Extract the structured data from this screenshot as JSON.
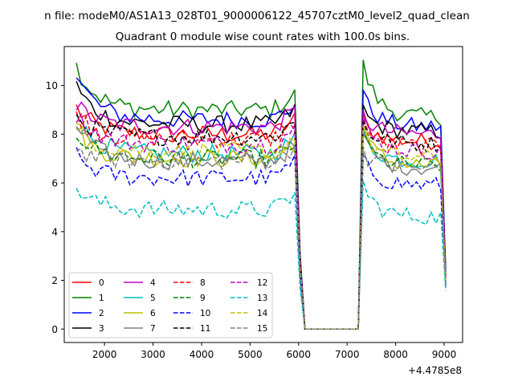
{
  "chart_data": {
    "type": "line",
    "suptitle": "n file: modeM0/AS1A13_028T01_9000006122_45707cztM0_level2_quad_clean",
    "title": "Quadrant 0 module wise count rates with 100.0s bins.",
    "xlabel": "",
    "ylabel": "",
    "x_offset_label": "+4.4785e8",
    "xlim": [
      1170,
      9380
    ],
    "ylim": [
      -0.55,
      11.6
    ],
    "x_ticks": [
      2000,
      3000,
      4000,
      5000,
      6000,
      7000,
      8000,
      9000
    ],
    "y_ticks": [
      0,
      2,
      4,
      6,
      8,
      10
    ],
    "x_tick_labels": [
      "2000",
      "3000",
      "4000",
      "5000",
      "6000",
      "7000",
      "8000",
      "9000"
    ],
    "y_tick_labels": [
      "0",
      "2",
      "4",
      "6",
      "8",
      "10"
    ],
    "grid": false,
    "legend_position": "lower-left",
    "legend_columns": 4,
    "bin_seconds": 100,
    "gap": {
      "start": 6130,
      "end": 7230,
      "value": 0
    },
    "segment1": {
      "x_start": 1420,
      "x_end": 5920
    },
    "segment2": {
      "x_start": 7330,
      "x_end": 8930,
      "x_final": 9030
    },
    "series": [
      {
        "name": "0",
        "color": "#ff0000",
        "dash": "solid",
        "level": 8.0,
        "start": 9.1,
        "seg2_start": 8.8,
        "final": 2.0
      },
      {
        "name": "1",
        "color": "#008000",
        "dash": "solid",
        "level": 9.0,
        "start": 10.8,
        "seg2_start": 11.05,
        "final": 2.2
      },
      {
        "name": "2",
        "color": "#0000ff",
        "dash": "solid",
        "level": 8.6,
        "start": 10.5,
        "seg2_start": 9.8,
        "final": 2.5
      },
      {
        "name": "3",
        "color": "#000000",
        "dash": "solid",
        "level": 8.4,
        "start": 10.0,
        "seg2_start": 9.2,
        "final": 2.3
      },
      {
        "name": "4",
        "color": "#bf00bf",
        "dash": "solid",
        "level": 8.3,
        "start": 9.2,
        "seg2_start": 9.0,
        "final": 2.1
      },
      {
        "name": "5",
        "color": "#00bfbf",
        "dash": "solid",
        "level": 7.2,
        "start": 8.6,
        "seg2_start": 8.2,
        "final": 1.9
      },
      {
        "name": "6",
        "color": "#bfbf00",
        "dash": "solid",
        "level": 7.0,
        "start": 8.2,
        "seg2_start": 8.4,
        "final": 1.8
      },
      {
        "name": "7",
        "color": "#808080",
        "dash": "solid",
        "level": 6.9,
        "start": 8.4,
        "seg2_start": 8.1,
        "final": 1.9
      },
      {
        "name": "8",
        "color": "#ff0000",
        "dash": "dashed",
        "level": 7.8,
        "start": 8.9,
        "seg2_start": 8.6,
        "final": 2.0
      },
      {
        "name": "9",
        "color": "#008000",
        "dash": "dashed",
        "level": 7.0,
        "start": 8.1,
        "seg2_start": 8.0,
        "final": 1.8
      },
      {
        "name": "10",
        "color": "#0000ff",
        "dash": "dashed",
        "level": 6.2,
        "start": 7.1,
        "seg2_start": 7.2,
        "final": 1.7
      },
      {
        "name": "11",
        "color": "#000000",
        "dash": "dashed",
        "level": 7.9,
        "start": 8.7,
        "seg2_start": 8.6,
        "final": 2.2
      },
      {
        "name": "12",
        "color": "#bf00bf",
        "dash": "dashed",
        "level": 7.6,
        "start": 8.8,
        "seg2_start": 8.7,
        "final": 2.1
      },
      {
        "name": "13",
        "color": "#00bfbf",
        "dash": "dashed",
        "level": 4.9,
        "start": 5.8,
        "seg2_start": 6.1,
        "final": 1.6
      },
      {
        "name": "14",
        "color": "#bfbf00",
        "dash": "dashed",
        "level": 7.3,
        "start": 8.3,
        "seg2_start": 8.3,
        "final": 1.9
      },
      {
        "name": "15",
        "color": "#808080",
        "dash": "dashed",
        "level": 6.9,
        "start": 7.4,
        "seg2_start": 7.5,
        "final": 1.9
      }
    ]
  }
}
